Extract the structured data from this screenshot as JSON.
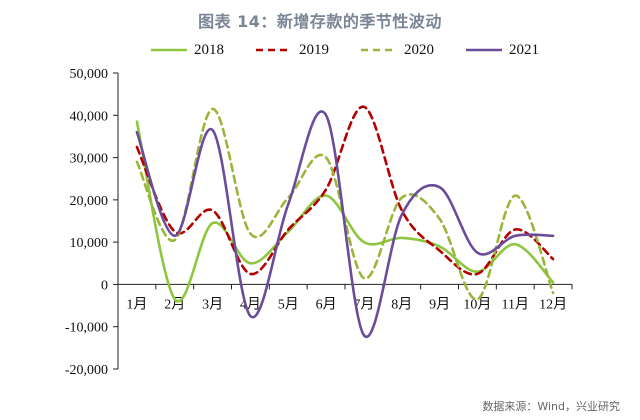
{
  "title": "图表 14：新增存款的季节性波动",
  "source": "数据来源：Wind，兴业研究",
  "chart_data": {
    "type": "line",
    "title": "图表 14：新增存款的季节性波动",
    "xlabel": "",
    "ylabel": "",
    "categories": [
      "1月",
      "2月",
      "3月",
      "4月",
      "5月",
      "6月",
      "7月",
      "8月",
      "9月",
      "10月",
      "11月",
      "12月"
    ],
    "ylim": [
      -20000,
      50000
    ],
    "yticks": [
      -20000,
      -10000,
      0,
      10000,
      20000,
      30000,
      40000,
      50000
    ],
    "ytick_labels": [
      "-20,000",
      "-10,000",
      "0",
      "10,000",
      "20,000",
      "30,000",
      "40,000",
      "50,000"
    ],
    "grid": false,
    "legend_position": "top",
    "series": [
      {
        "name": "2018",
        "color": "#8dc63f",
        "dash": "solid",
        "values": [
          38500,
          -3500,
          14500,
          5000,
          12500,
          21000,
          10000,
          11000,
          9000,
          3000,
          9500,
          500
        ]
      },
      {
        "name": "2019",
        "color": "#b30000",
        "dash": "dashed",
        "values": [
          32500,
          12500,
          17500,
          2500,
          13000,
          22500,
          42000,
          17500,
          8000,
          2500,
          13000,
          6000
        ]
      },
      {
        "name": "2020",
        "color": "#9ab63a",
        "dash": "dashed",
        "values": [
          29000,
          10500,
          41500,
          12000,
          20500,
          30000,
          1500,
          20500,
          15500,
          -3500,
          21000,
          -2000
        ]
      },
      {
        "name": "2021",
        "color": "#6b4c9a",
        "dash": "solid",
        "values": [
          36000,
          11500,
          36500,
          -7500,
          19000,
          40000,
          -12000,
          16500,
          23000,
          7500,
          11500,
          11500
        ]
      }
    ]
  }
}
